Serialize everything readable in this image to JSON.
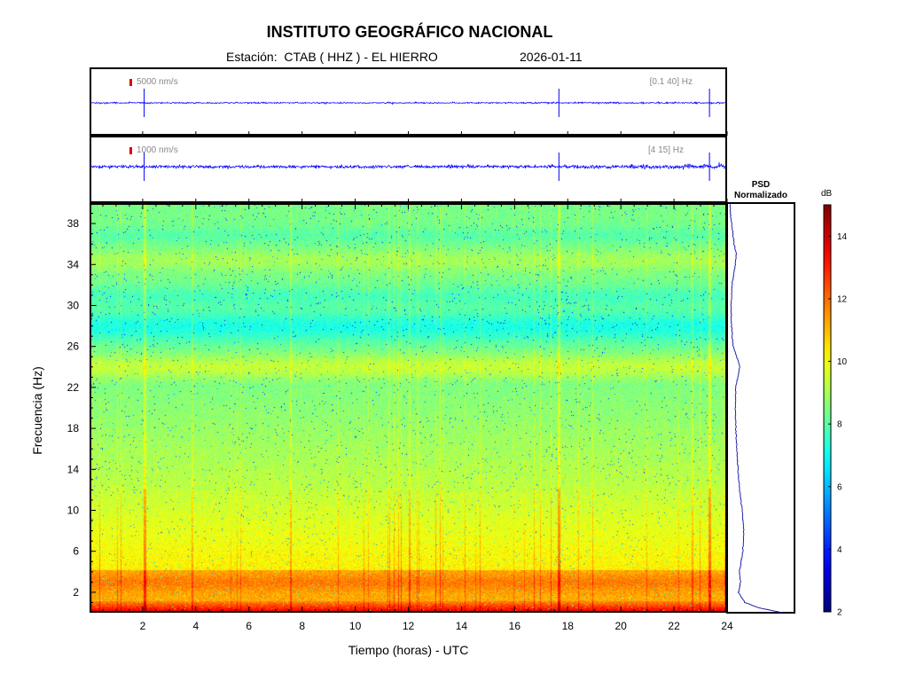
{
  "header": {
    "title": "INSTITUTO GEOGRÁFICO NACIONAL",
    "station": "Estación:  CTAB ( HHZ ) - EL HIERRO",
    "date": "2026-01-11"
  },
  "traces": [
    {
      "scale_label": "5000 nm/s",
      "band_label": "[0.1 40] Hz"
    },
    {
      "scale_label": "1000 nm/s",
      "band_label": "[4 15] Hz"
    }
  ],
  "psd_title": [
    "PSD",
    "Normalizado"
  ],
  "chart_data": {
    "type": "heatmap",
    "title": "INSTITUTO GEOGRÁFICO NACIONAL",
    "xlabel": "Tiempo (horas) - UTC",
    "ylabel": "Frecuencia  (Hz)",
    "xlim": [
      0,
      24
    ],
    "ylim": [
      0,
      40
    ],
    "x_ticks": [
      2,
      4,
      6,
      8,
      10,
      12,
      14,
      16,
      18,
      20,
      22,
      24
    ],
    "y_ticks": [
      2,
      6,
      10,
      14,
      18,
      22,
      26,
      30,
      34,
      38
    ],
    "colorbar": {
      "label": "dB",
      "range": [
        2,
        15
      ],
      "ticks": [
        2,
        4,
        6,
        8,
        10,
        12,
        14
      ]
    },
    "event_times_hours": [
      2.0,
      17.7,
      23.4
    ],
    "psd_profile": {
      "frequency_hz": [
        0,
        0.5,
        1,
        2,
        3,
        4,
        6,
        8,
        10,
        12,
        14,
        16,
        18,
        20,
        22,
        23,
        24,
        25,
        26,
        28,
        30,
        32,
        34,
        35,
        36,
        38,
        39,
        40
      ],
      "value_norm": [
        1.0,
        0.55,
        0.3,
        0.18,
        0.22,
        0.2,
        0.26,
        0.28,
        0.25,
        0.2,
        0.17,
        0.15,
        0.13,
        0.12,
        0.13,
        0.17,
        0.2,
        0.15,
        0.08,
        0.05,
        0.04,
        0.06,
        0.12,
        0.14,
        0.1,
        0.05,
        0.03,
        0.02
      ]
    }
  }
}
